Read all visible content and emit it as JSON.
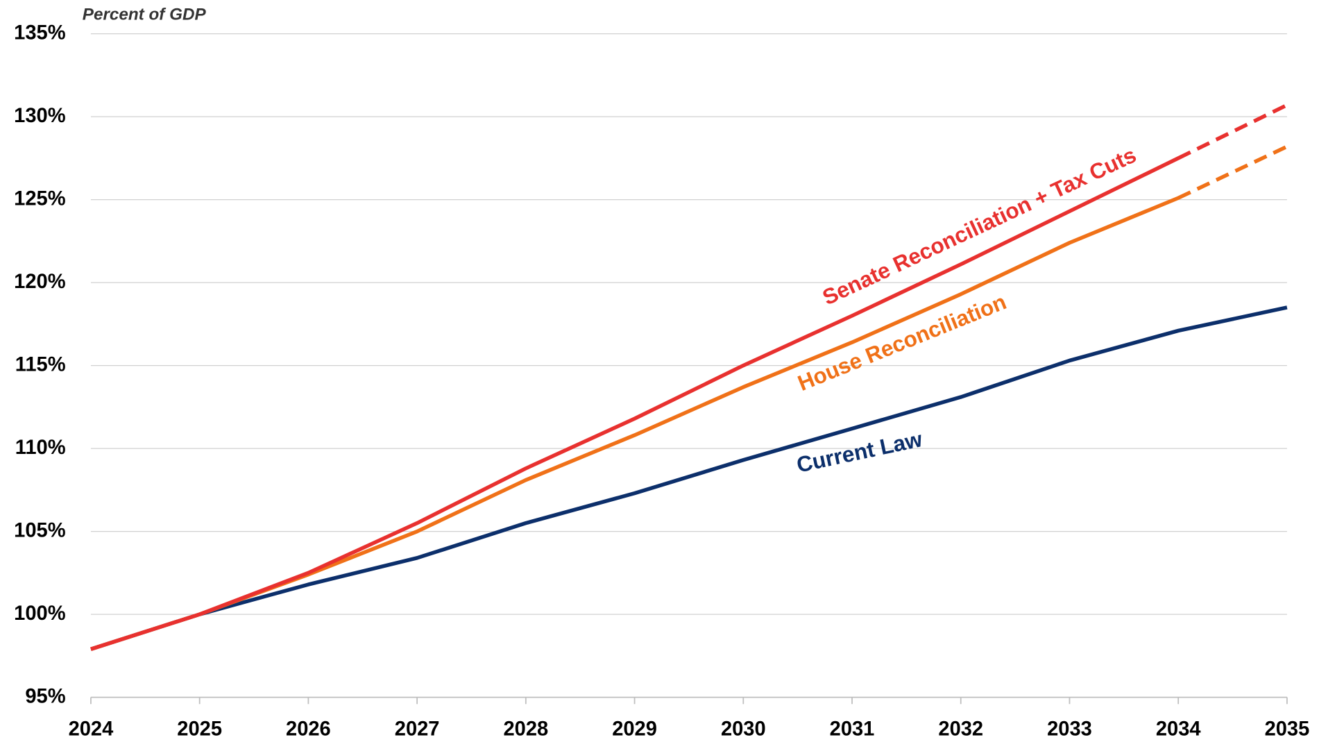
{
  "chart_data": {
    "type": "line",
    "axis_label": "Percent of GDP",
    "x": [
      2024,
      2025,
      2026,
      2027,
      2028,
      2029,
      2030,
      2031,
      2032,
      2033,
      2034,
      2035
    ],
    "xlim": [
      2024,
      2035
    ],
    "xticks": [
      2024,
      2025,
      2026,
      2027,
      2028,
      2029,
      2030,
      2031,
      2032,
      2033,
      2034,
      2035
    ],
    "ylim": [
      95,
      135
    ],
    "yticks": [
      {
        "value": 95,
        "label": "95%"
      },
      {
        "value": 100,
        "label": "100%"
      },
      {
        "value": 105,
        "label": "105%"
      },
      {
        "value": 110,
        "label": "110%"
      },
      {
        "value": 115,
        "label": "115%"
      },
      {
        "value": 120,
        "label": "120%"
      },
      {
        "value": 125,
        "label": "125%"
      },
      {
        "value": 130,
        "label": "130%"
      },
      {
        "value": 135,
        "label": "135%"
      }
    ],
    "grid": true,
    "series": [
      {
        "name": "Current Law",
        "color": "#0c2f6b",
        "values": [
          97.9,
          100.0,
          101.8,
          103.4,
          105.5,
          107.3,
          109.3,
          111.2,
          113.1,
          115.3,
          117.1,
          118.5
        ]
      },
      {
        "name": "House Reconciliation",
        "color": "#f07118",
        "dashed_from_x": 2034,
        "values": [
          97.9,
          100.0,
          102.4,
          105.0,
          108.1,
          110.8,
          113.7,
          116.4,
          119.3,
          122.4,
          125.1,
          128.2
        ]
      },
      {
        "name": "Senate Reconciliation + Tax Cuts",
        "color": "#e8312f",
        "dashed_from_x": 2034,
        "values": [
          97.9,
          100.0,
          102.5,
          105.5,
          108.8,
          111.8,
          115.0,
          118.0,
          121.1,
          124.3,
          127.5,
          130.7
        ]
      }
    ]
  }
}
